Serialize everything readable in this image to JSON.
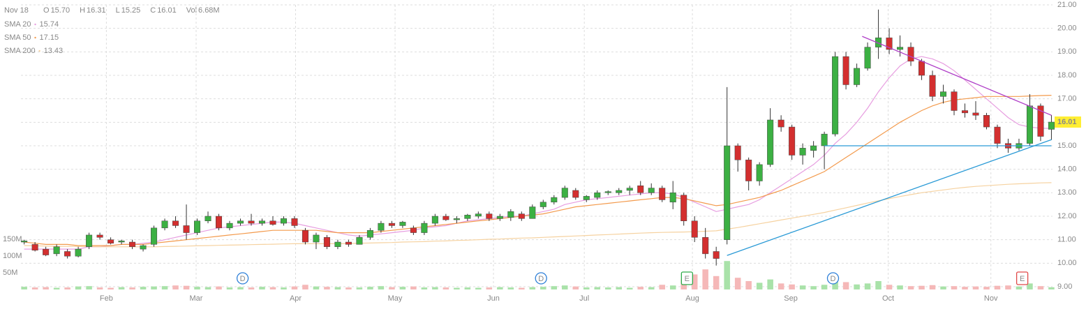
{
  "header": {
    "date": "Nov 18",
    "items": [
      {
        "label": "O",
        "value": "15.70"
      },
      {
        "label": "H",
        "value": "16.31"
      },
      {
        "label": "L",
        "value": "15.25"
      },
      {
        "label": "C",
        "value": "16.01"
      },
      {
        "label": "Vol",
        "value": "6.68M"
      }
    ]
  },
  "chart_data": {
    "type": "candlestick",
    "xlim": [
      -0.3,
      95.1
    ],
    "xticks": [
      {
        "value": 7.6,
        "label": "Feb"
      },
      {
        "value": 15.9,
        "label": "Mar"
      },
      {
        "value": 25.1,
        "label": "Apr"
      },
      {
        "value": 34.3,
        "label": "May"
      },
      {
        "value": 43.4,
        "label": "Jun"
      },
      {
        "value": 51.8,
        "label": "Jul"
      },
      {
        "value": 61.8,
        "label": "Aug"
      },
      {
        "value": 70.9,
        "label": "Sep"
      },
      {
        "value": 79.9,
        "label": "Oct"
      },
      {
        "value": 89.4,
        "label": "Nov"
      }
    ],
    "ylim": [
      9,
      21
    ],
    "yticks": [
      {
        "value": 9,
        "label": "9.00"
      },
      {
        "value": 10,
        "label": "10.00"
      },
      {
        "value": 11,
        "label": "11.00"
      },
      {
        "value": 12,
        "label": "12.00"
      },
      {
        "value": 13,
        "label": "13.00"
      },
      {
        "value": 14,
        "label": "14.00"
      },
      {
        "value": 15,
        "label": "15.00"
      },
      {
        "value": 16,
        "label": "16.00"
      },
      {
        "value": 17,
        "label": "17.00"
      },
      {
        "value": 18,
        "label": "18.00"
      },
      {
        "value": 19,
        "label": "19.00"
      },
      {
        "value": 20,
        "label": "20.00"
      },
      {
        "value": 21,
        "label": "21.00"
      }
    ],
    "y2lim": [
      0,
      850
    ],
    "y2ticks": [
      {
        "value": 50,
        "label": "50M"
      },
      {
        "value": 100,
        "label": "100M"
      },
      {
        "value": 150,
        "label": "150M"
      }
    ],
    "grid": true,
    "up_color": "#3cb043",
    "down_color": "#d32f2f",
    "up_volume_color": "#a9e2a9",
    "down_volume_color": "#f5b8b8",
    "last_price_label": "16.01",
    "candles": [
      [
        10.9,
        11.0,
        10.8,
        10.95
      ],
      [
        10.8,
        10.9,
        10.5,
        10.55
      ],
      [
        10.6,
        10.7,
        10.3,
        10.35
      ],
      [
        10.4,
        10.8,
        10.3,
        10.7
      ],
      [
        10.5,
        10.6,
        10.2,
        10.3
      ],
      [
        10.3,
        10.7,
        10.25,
        10.6
      ],
      [
        10.7,
        11.3,
        10.6,
        11.2
      ],
      [
        11.2,
        11.3,
        11.0,
        11.1
      ],
      [
        11.0,
        11.1,
        10.8,
        10.85
      ],
      [
        10.9,
        11.0,
        10.8,
        10.95
      ],
      [
        10.9,
        11.0,
        10.6,
        10.7
      ],
      [
        10.6,
        10.8,
        10.5,
        10.75
      ],
      [
        10.8,
        11.6,
        10.7,
        11.5
      ],
      [
        11.5,
        11.9,
        11.4,
        11.8
      ],
      [
        11.8,
        12.0,
        11.5,
        11.6
      ],
      [
        11.6,
        12.5,
        11.0,
        11.3
      ],
      [
        11.3,
        11.9,
        11.2,
        11.8
      ],
      [
        11.8,
        12.2,
        11.7,
        12.0
      ],
      [
        12.0,
        12.1,
        11.4,
        11.5
      ],
      [
        11.5,
        11.8,
        11.4,
        11.7
      ],
      [
        11.7,
        11.9,
        11.6,
        11.8
      ],
      [
        11.8,
        12.1,
        11.6,
        11.7
      ],
      [
        11.7,
        11.9,
        11.6,
        11.8
      ],
      [
        11.8,
        12.0,
        11.6,
        11.65
      ],
      [
        11.7,
        12.0,
        11.6,
        11.9
      ],
      [
        11.9,
        12.0,
        11.5,
        11.6
      ],
      [
        11.4,
        11.5,
        10.8,
        10.9
      ],
      [
        10.9,
        11.3,
        10.6,
        11.2
      ],
      [
        11.1,
        11.2,
        10.6,
        10.7
      ],
      [
        10.7,
        11.0,
        10.6,
        10.9
      ],
      [
        10.9,
        11.0,
        10.7,
        10.8
      ],
      [
        10.8,
        11.2,
        10.8,
        11.1
      ],
      [
        11.1,
        11.5,
        11.0,
        11.4
      ],
      [
        11.4,
        11.8,
        11.3,
        11.7
      ],
      [
        11.7,
        11.8,
        11.5,
        11.6
      ],
      [
        11.6,
        11.8,
        11.5,
        11.75
      ],
      [
        11.5,
        11.6,
        11.2,
        11.3
      ],
      [
        11.3,
        11.8,
        11.2,
        11.7
      ],
      [
        11.7,
        12.1,
        11.6,
        12.0
      ],
      [
        12.0,
        12.1,
        11.8,
        11.85
      ],
      [
        11.85,
        12.0,
        11.7,
        11.9
      ],
      [
        11.9,
        12.1,
        11.8,
        12.05
      ],
      [
        12.0,
        12.2,
        11.9,
        12.1
      ],
      [
        12.1,
        12.2,
        11.8,
        11.9
      ],
      [
        11.9,
        12.1,
        11.8,
        12.0
      ],
      [
        11.95,
        12.3,
        11.8,
        12.2
      ],
      [
        12.1,
        12.2,
        11.8,
        11.9
      ],
      [
        11.9,
        12.5,
        11.9,
        12.4
      ],
      [
        12.4,
        12.7,
        12.3,
        12.6
      ],
      [
        12.6,
        12.9,
        12.5,
        12.8
      ],
      [
        12.8,
        13.3,
        12.7,
        13.2
      ],
      [
        13.1,
        13.2,
        12.7,
        12.8
      ],
      [
        12.7,
        12.9,
        12.6,
        12.85
      ],
      [
        12.8,
        13.1,
        12.7,
        13.0
      ],
      [
        13.0,
        13.1,
        12.9,
        13.05
      ],
      [
        13.0,
        13.2,
        12.9,
        13.1
      ],
      [
        13.1,
        13.3,
        12.9,
        13.2
      ],
      [
        13.3,
        13.5,
        12.9,
        13.0
      ],
      [
        13.0,
        13.4,
        12.9,
        13.2
      ],
      [
        13.2,
        13.3,
        12.6,
        12.7
      ],
      [
        12.6,
        13.5,
        12.3,
        13.0
      ],
      [
        12.9,
        13.0,
        11.6,
        11.8
      ],
      [
        11.8,
        12.0,
        10.9,
        11.1
      ],
      [
        11.1,
        11.5,
        10.2,
        10.4
      ],
      [
        10.5,
        10.7,
        9.9,
        10.2
      ],
      [
        11.0,
        17.5,
        10.8,
        15.0
      ],
      [
        15.0,
        15.1,
        13.9,
        14.4
      ],
      [
        14.4,
        14.5,
        13.1,
        13.5
      ],
      [
        13.5,
        14.3,
        13.3,
        14.2
      ],
      [
        14.2,
        16.6,
        14.1,
        16.1
      ],
      [
        16.1,
        16.3,
        15.6,
        15.8
      ],
      [
        15.8,
        15.9,
        14.4,
        14.6
      ],
      [
        14.6,
        15.1,
        14.2,
        14.9
      ],
      [
        14.8,
        15.2,
        14.5,
        15.0
      ],
      [
        15.0,
        15.6,
        14.0,
        15.5
      ],
      [
        15.5,
        19.0,
        15.4,
        18.8
      ],
      [
        18.8,
        19.0,
        17.4,
        17.6
      ],
      [
        17.6,
        18.5,
        17.5,
        18.3
      ],
      [
        18.3,
        19.4,
        18.2,
        19.2
      ],
      [
        19.2,
        20.8,
        18.7,
        19.6
      ],
      [
        19.6,
        20.0,
        18.9,
        19.1
      ],
      [
        19.1,
        19.7,
        18.8,
        19.2
      ],
      [
        19.2,
        19.4,
        18.4,
        18.6
      ],
      [
        18.6,
        18.7,
        17.8,
        18.0
      ],
      [
        18.0,
        18.2,
        16.9,
        17.1
      ],
      [
        17.1,
        17.6,
        16.8,
        17.3
      ],
      [
        17.3,
        17.4,
        16.3,
        16.5
      ],
      [
        16.5,
        16.8,
        16.2,
        16.4
      ],
      [
        16.4,
        16.9,
        16.1,
        16.3
      ],
      [
        16.3,
        16.4,
        15.7,
        15.8
      ],
      [
        15.8,
        15.9,
        14.9,
        15.1
      ],
      [
        15.1,
        15.3,
        14.7,
        14.9
      ],
      [
        14.9,
        15.3,
        14.8,
        15.1
      ],
      [
        15.1,
        17.2,
        15.0,
        16.7
      ],
      [
        16.7,
        16.8,
        15.2,
        15.4
      ],
      [
        15.7,
        16.31,
        15.25,
        16.01
      ]
    ],
    "volume": [
      8,
      6,
      7,
      5,
      6,
      9,
      10,
      6,
      5,
      7,
      6,
      8,
      9,
      10,
      12,
      11,
      8,
      7,
      9,
      6,
      7,
      6,
      8,
      7,
      6,
      9,
      14,
      9,
      8,
      7,
      6,
      6,
      8,
      10,
      7,
      8,
      9,
      6,
      7,
      6,
      5,
      6,
      5,
      6,
      7,
      6,
      5,
      7,
      8,
      10,
      12,
      9,
      6,
      7,
      6,
      7,
      5,
      8,
      7,
      14,
      12,
      30,
      45,
      60,
      40,
      85,
      35,
      25,
      20,
      30,
      18,
      15,
      12,
      10,
      14,
      40,
      22,
      15,
      18,
      25,
      14,
      12,
      10,
      11,
      13,
      9,
      10,
      8,
      9,
      8,
      11,
      12,
      9,
      18,
      10,
      6.68
    ],
    "series": [
      {
        "name": "SMA 20",
        "value_label": "15.74",
        "color": "#e79de0",
        "values": [
          10.6,
          10.6,
          10.6,
          10.6,
          10.6,
          10.6,
          10.7,
          10.7,
          10.75,
          10.8,
          10.8,
          10.85,
          10.9,
          11.0,
          11.1,
          11.2,
          11.3,
          11.4,
          11.5,
          11.55,
          11.6,
          11.65,
          11.7,
          11.75,
          11.75,
          11.7,
          11.6,
          11.5,
          11.4,
          11.3,
          11.2,
          11.15,
          11.2,
          11.25,
          11.3,
          11.35,
          11.4,
          11.5,
          11.55,
          11.6,
          11.7,
          11.8,
          11.85,
          11.9,
          11.95,
          12.0,
          12.0,
          12.1,
          12.2,
          12.3,
          12.5,
          12.6,
          12.7,
          12.75,
          12.8,
          12.85,
          12.9,
          12.95,
          13.0,
          13.0,
          12.95,
          12.8,
          12.6,
          12.4,
          12.2,
          12.3,
          12.4,
          12.5,
          12.7,
          13.0,
          13.3,
          13.6,
          13.9,
          14.2,
          14.6,
          15.1,
          15.5,
          16.0,
          16.6,
          17.3,
          17.9,
          18.4,
          18.7,
          18.8,
          18.7,
          18.5,
          18.2,
          17.8,
          17.4,
          17.0,
          16.6,
          16.2,
          15.9,
          15.8,
          15.75,
          15.74
        ]
      },
      {
        "name": "SMA 50",
        "value_label": "17.15",
        "color": "#f39a4c",
        "values": [
          10.9,
          10.85,
          10.8,
          10.8,
          10.8,
          10.75,
          10.75,
          10.75,
          10.75,
          10.8,
          10.8,
          10.8,
          10.85,
          10.9,
          10.95,
          11.0,
          11.05,
          11.1,
          11.15,
          11.2,
          11.25,
          11.3,
          11.35,
          11.4,
          11.4,
          11.4,
          11.4,
          11.4,
          11.35,
          11.3,
          11.3,
          11.3,
          11.3,
          11.35,
          11.4,
          11.45,
          11.5,
          11.55,
          11.6,
          11.65,
          11.7,
          11.75,
          11.8,
          11.85,
          11.9,
          11.95,
          12.0,
          12.05,
          12.1,
          12.2,
          12.3,
          12.4,
          12.45,
          12.5,
          12.55,
          12.6,
          12.65,
          12.7,
          12.75,
          12.8,
          12.8,
          12.75,
          12.65,
          12.55,
          12.45,
          12.5,
          12.6,
          12.7,
          12.8,
          12.95,
          13.1,
          13.3,
          13.5,
          13.7,
          13.9,
          14.2,
          14.5,
          14.8,
          15.1,
          15.4,
          15.7,
          16.0,
          16.25,
          16.5,
          16.7,
          16.85,
          16.95,
          17.0,
          17.05,
          17.1,
          17.1,
          17.1,
          17.1,
          17.12,
          17.14,
          17.15
        ]
      },
      {
        "name": "SMA 200",
        "value_label": "13.43",
        "color": "#f6d2a0",
        "values": [
          10.75,
          10.74,
          10.73,
          10.72,
          10.72,
          10.71,
          10.71,
          10.7,
          10.7,
          10.7,
          10.7,
          10.7,
          10.7,
          10.71,
          10.72,
          10.73,
          10.74,
          10.75,
          10.76,
          10.77,
          10.78,
          10.79,
          10.8,
          10.81,
          10.82,
          10.83,
          10.83,
          10.83,
          10.83,
          10.83,
          10.84,
          10.85,
          10.86,
          10.87,
          10.88,
          10.9,
          10.91,
          10.92,
          10.94,
          10.95,
          10.97,
          10.98,
          11.0,
          11.02,
          11.03,
          11.05,
          11.07,
          11.08,
          11.1,
          11.12,
          11.14,
          11.16,
          11.18,
          11.2,
          11.22,
          11.24,
          11.26,
          11.28,
          11.3,
          11.31,
          11.32,
          11.33,
          11.34,
          11.36,
          11.38,
          11.45,
          11.52,
          11.6,
          11.68,
          11.76,
          11.84,
          11.92,
          12.0,
          12.08,
          12.16,
          12.26,
          12.36,
          12.46,
          12.56,
          12.66,
          12.75,
          12.84,
          12.92,
          13.0,
          13.06,
          13.12,
          13.18,
          13.23,
          13.27,
          13.3,
          13.33,
          13.36,
          13.38,
          13.4,
          13.42,
          13.43
        ]
      }
    ],
    "trendlines": [
      {
        "color": "#b040c8",
        "points": [
          [
            77.5,
            19.66
          ],
          [
            95,
            16.3
          ]
        ]
      },
      {
        "color": "#2a9ad6",
        "points": [
          [
            65.0,
            10.33
          ],
          [
            95,
            15.26
          ]
        ]
      },
      {
        "color": "#2a9ad6",
        "points": [
          [
            74.0,
            15.0
          ],
          [
            95,
            15.0
          ]
        ]
      }
    ],
    "events": [
      {
        "label": "D",
        "x": 20.2,
        "color": "#2d7fd8",
        "shape": "circle"
      },
      {
        "label": "D",
        "x": 47.8,
        "color": "#2d7fd8",
        "shape": "circle"
      },
      {
        "label": "D",
        "x": 74.8,
        "color": "#2d7fd8",
        "shape": "circle"
      },
      {
        "label": "E",
        "x": 61.3,
        "color": "#2eaa4a",
        "shape": "box"
      },
      {
        "label": "E",
        "x": 92.3,
        "color": "#e04848",
        "shape": "box"
      }
    ]
  }
}
